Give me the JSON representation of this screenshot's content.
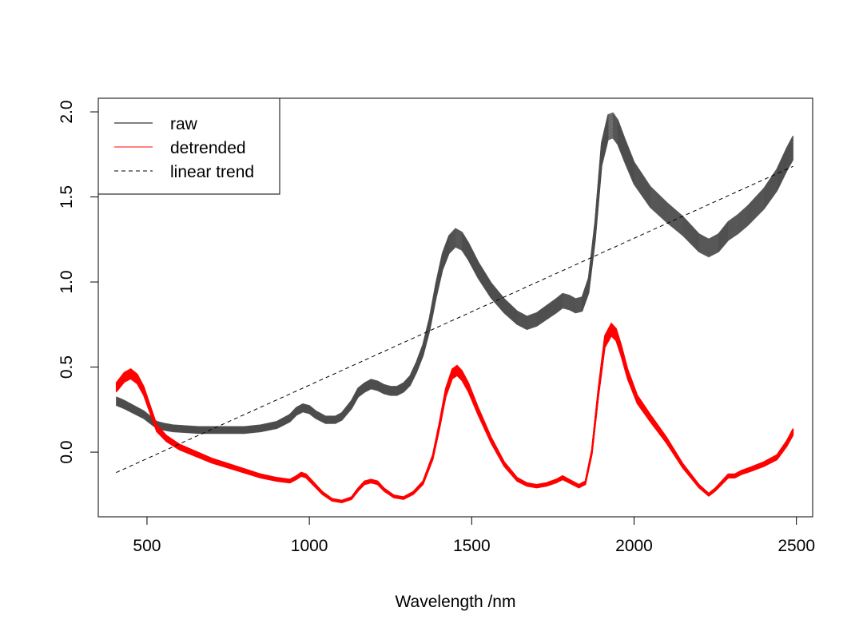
{
  "chart_data": {
    "type": "line",
    "title": "",
    "xlabel": "Wavelength /nm",
    "ylabel": "",
    "xlim": [
      350,
      2550
    ],
    "ylim": [
      -0.38,
      2.08
    ],
    "xticks": [
      500,
      1000,
      1500,
      2000,
      2500
    ],
    "xtick_labels": [
      "500",
      "1000",
      "1500",
      "2000",
      "2500"
    ],
    "yticks": [
      0.0,
      0.5,
      1.0,
      1.5,
      2.0
    ],
    "ytick_labels": [
      "0.0",
      "0.5",
      "1.0",
      "1.5",
      "2.0"
    ],
    "grid": false,
    "legend_position": "top-left",
    "legend": [
      {
        "label": "raw",
        "color": "#000000",
        "dash": "solid"
      },
      {
        "label": "detrended",
        "color": "#ff0000",
        "dash": "solid"
      },
      {
        "label": "linear trend",
        "color": "#000000",
        "dash": "dashed"
      }
    ],
    "series": [
      {
        "name": "raw",
        "color": "#4d4d4d",
        "band_spread": 0.03,
        "x": [
          405,
          430,
          450,
          470,
          490,
          510,
          530,
          550,
          580,
          620,
          660,
          700,
          750,
          800,
          850,
          900,
          940,
          960,
          980,
          1000,
          1020,
          1050,
          1080,
          1100,
          1130,
          1150,
          1170,
          1190,
          1210,
          1230,
          1250,
          1270,
          1290,
          1310,
          1330,
          1350,
          1370,
          1390,
          1410,
          1430,
          1450,
          1470,
          1490,
          1520,
          1560,
          1600,
          1640,
          1670,
          1700,
          1730,
          1760,
          1780,
          1800,
          1820,
          1840,
          1860,
          1880,
          1900,
          1920,
          1935,
          1950,
          1970,
          2000,
          2050,
          2100,
          2150,
          2200,
          2230,
          2260,
          2290,
          2320,
          2350,
          2400,
          2440,
          2470,
          2490
        ],
        "y": [
          0.3,
          0.28,
          0.26,
          0.24,
          0.22,
          0.19,
          0.16,
          0.15,
          0.14,
          0.135,
          0.13,
          0.13,
          0.13,
          0.13,
          0.14,
          0.16,
          0.2,
          0.24,
          0.26,
          0.25,
          0.22,
          0.19,
          0.19,
          0.21,
          0.28,
          0.35,
          0.38,
          0.4,
          0.39,
          0.37,
          0.36,
          0.36,
          0.38,
          0.42,
          0.5,
          0.6,
          0.75,
          0.95,
          1.12,
          1.22,
          1.26,
          1.24,
          1.18,
          1.07,
          0.95,
          0.86,
          0.79,
          0.76,
          0.78,
          0.82,
          0.86,
          0.89,
          0.88,
          0.86,
          0.87,
          0.98,
          1.3,
          1.75,
          1.91,
          1.92,
          1.88,
          1.78,
          1.64,
          1.5,
          1.41,
          1.33,
          1.23,
          1.2,
          1.23,
          1.3,
          1.34,
          1.39,
          1.49,
          1.6,
          1.72,
          1.79
        ]
      },
      {
        "name": "detrended",
        "color": "#ff0000",
        "band_spread": 0.03,
        "x": [
          405,
          430,
          450,
          470,
          490,
          510,
          530,
          560,
          600,
          650,
          700,
          750,
          800,
          850,
          900,
          940,
          960,
          975,
          990,
          1010,
          1040,
          1070,
          1100,
          1130,
          1150,
          1170,
          1190,
          1210,
          1230,
          1260,
          1290,
          1320,
          1350,
          1380,
          1400,
          1420,
          1440,
          1455,
          1470,
          1490,
          1520,
          1560,
          1600,
          1640,
          1670,
          1700,
          1730,
          1760,
          1780,
          1800,
          1830,
          1850,
          1870,
          1890,
          1910,
          1930,
          1945,
          1960,
          1980,
          2010,
          2050,
          2100,
          2150,
          2200,
          2230,
          2250,
          2270,
          2290,
          2310,
          2330,
          2360,
          2400,
          2440,
          2470,
          2490
        ],
        "y": [
          0.38,
          0.44,
          0.46,
          0.43,
          0.36,
          0.25,
          0.14,
          0.08,
          0.03,
          -0.01,
          -0.05,
          -0.08,
          -0.11,
          -0.14,
          -0.16,
          -0.17,
          -0.15,
          -0.13,
          -0.14,
          -0.18,
          -0.24,
          -0.28,
          -0.29,
          -0.27,
          -0.22,
          -0.18,
          -0.17,
          -0.18,
          -0.22,
          -0.26,
          -0.27,
          -0.24,
          -0.18,
          -0.03,
          0.15,
          0.35,
          0.46,
          0.48,
          0.45,
          0.38,
          0.24,
          0.07,
          -0.07,
          -0.16,
          -0.19,
          -0.2,
          -0.19,
          -0.17,
          -0.15,
          -0.17,
          -0.2,
          -0.18,
          0.0,
          0.35,
          0.65,
          0.72,
          0.69,
          0.6,
          0.46,
          0.31,
          0.2,
          0.07,
          -0.08,
          -0.2,
          -0.25,
          -0.22,
          -0.18,
          -0.14,
          -0.14,
          -0.12,
          -0.1,
          -0.07,
          -0.03,
          0.05,
          0.12
        ]
      },
      {
        "name": "linear trend",
        "color": "#000000",
        "dash": "dashed",
        "x": [
          405,
          2490
        ],
        "y": [
          -0.12,
          1.68
        ]
      }
    ]
  }
}
